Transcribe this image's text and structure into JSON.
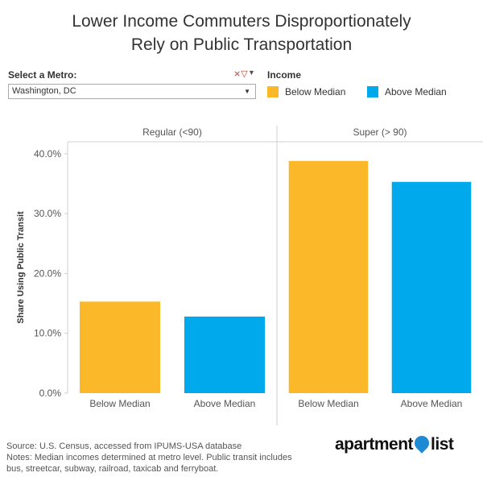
{
  "title_line1": "Lower Income Commuters Disproportionately",
  "title_line2": "Rely on Public Transportation",
  "filter": {
    "label": "Select a Metro:",
    "value": "Washington, DC",
    "filter_icon": "filter-clear-icon",
    "caret_icon": "chevron-down-icon"
  },
  "legend": {
    "title": "Income",
    "items": [
      {
        "label": "Below Median",
        "color": "#FBB829"
      },
      {
        "label": "Above Median",
        "color": "#00A9EC"
      }
    ]
  },
  "chart_data": {
    "type": "bar",
    "ylabel": "Share Using Public Transit",
    "ylim": [
      0,
      42
    ],
    "yticks": [
      0,
      10,
      20,
      30,
      40
    ],
    "ytick_labels": [
      "0.0%",
      "10.0%",
      "20.0%",
      "30.0%",
      "40.0%"
    ],
    "grid": false,
    "legend_position": "top-right",
    "categories": [
      "Below Median",
      "Above Median"
    ],
    "panels": [
      {
        "name": "Regular (<90)",
        "values": [
          15.3,
          12.8
        ]
      },
      {
        "name": "Super (> 90)",
        "values": [
          38.8,
          35.3
        ]
      }
    ]
  },
  "footer": {
    "source": "Source: U.S. Census, accessed from IPUMS-USA database",
    "notes_line1": "Notes: Median incomes determined at metro level. Public transit includes",
    "notes_line2": "bus, streetcar, subway, railroad, taxicab and ferryboat."
  },
  "logo": {
    "text_left": "apartment",
    "text_right": "list"
  }
}
